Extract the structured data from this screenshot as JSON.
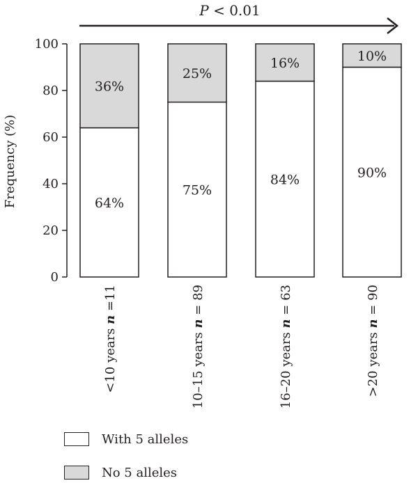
{
  "chart_data": {
    "type": "bar",
    "stacked": true,
    "categories": [
      "<10 years n =11",
      "10–15 years n = 89",
      "16–20 years n = 63",
      ">20 years n = 90"
    ],
    "category_parts": [
      {
        "prefix": "<10 years ",
        "n": "n",
        "suffix": " =11"
      },
      {
        "prefix": "10–15 years ",
        "n": "n",
        "suffix": " = 89"
      },
      {
        "prefix": "16–20 years ",
        "n": "n",
        "suffix": " = 63"
      },
      {
        "prefix": ">20 years ",
        "n": "n",
        "suffix": " = 90"
      }
    ],
    "series": [
      {
        "name": "With 5 alleles",
        "values": [
          64,
          75,
          84,
          90
        ],
        "labels": [
          "64%",
          "75%",
          "84%",
          "90%"
        ],
        "color": "#ffffff"
      },
      {
        "name": "No 5 alleles",
        "values": [
          36,
          25,
          16,
          10
        ],
        "labels": [
          "36%",
          "25%",
          "16%",
          "10%"
        ],
        "color": "#d9d9d9"
      }
    ],
    "ylabel": "Frequency (%)",
    "ylim": [
      0,
      100
    ],
    "yticks": [
      0,
      20,
      40,
      60,
      80,
      100
    ],
    "ytick_labels": [
      "0",
      "20",
      "40",
      "60",
      "80",
      "100"
    ],
    "grid": false,
    "annotation": {
      "p_letter": "P",
      "p_rest": " < 0.01",
      "arrow": "right"
    },
    "legend_position": "bottom-left"
  },
  "legend": {
    "items": [
      {
        "label": "With 5 alleles",
        "color": "#ffffff"
      },
      {
        "label": "No 5 alleles",
        "color": "#d9d9d9"
      }
    ]
  },
  "colors": {
    "ink": "#231f20",
    "bar_fill": "#ffffff",
    "bar_fill_secondary": "#d9d9d9"
  }
}
